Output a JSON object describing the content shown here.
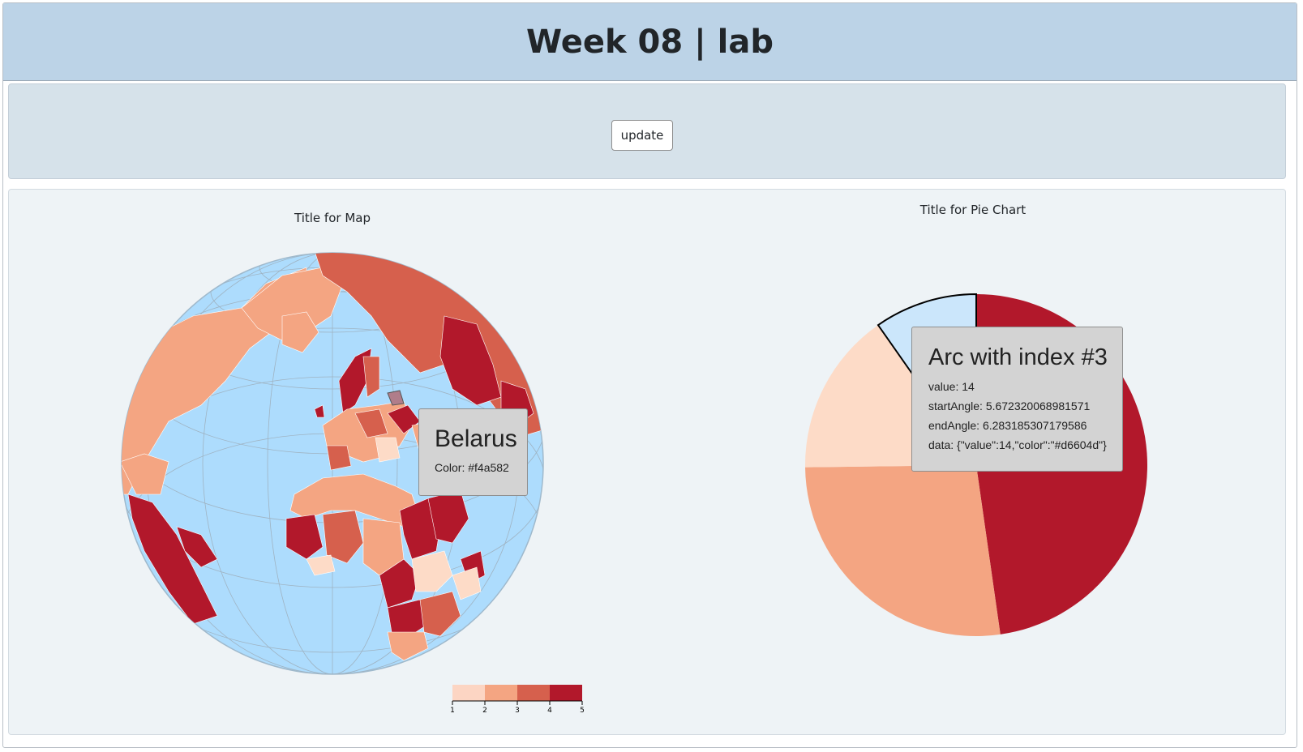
{
  "header": {
    "title": "Week 08 | lab"
  },
  "controls": {
    "update_label": "update"
  },
  "map": {
    "title": "Title for Map",
    "ocean_color": "#addcfd",
    "land_color_levels": [
      "#fcd5c3",
      "#f4a582",
      "#d6604d",
      "#b2182b"
    ],
    "tooltip": {
      "name": "Belarus",
      "color_line": "Color: #f4a582"
    },
    "legend": {
      "ticks": [
        "1",
        "2",
        "3",
        "4",
        "5"
      ]
    }
  },
  "pie": {
    "title": "Title for Pie Chart",
    "tooltip": {
      "title": "Arc with index #3",
      "value_line": "value: 14",
      "start_line": "startAngle: 5.672320068981571",
      "end_line": "endAngle: 6.283185307179586",
      "data_line": "data: {\"value\":14,\"color\":\"#d6604d\"}"
    }
  },
  "chart_data": {
    "type": "pie",
    "title": "Title for Pie Chart",
    "slices": [
      {
        "index": 0,
        "value": 60,
        "color": "#b2182b",
        "startAngle": 0,
        "endAngle": 3.0
      },
      {
        "index": 1,
        "value": 38,
        "color": "#f4a582",
        "startAngle": 3.0,
        "endAngle": 4.7
      },
      {
        "index": 2,
        "value": 25,
        "color": "#fddbc7",
        "startAngle": 4.7,
        "endAngle": 5.672320068981571
      },
      {
        "index": 3,
        "value": 14,
        "color": "#cbe6fb",
        "startAngle": 5.672320068981571,
        "endAngle": 6.283185307179586,
        "highlighted": true
      }
    ]
  }
}
